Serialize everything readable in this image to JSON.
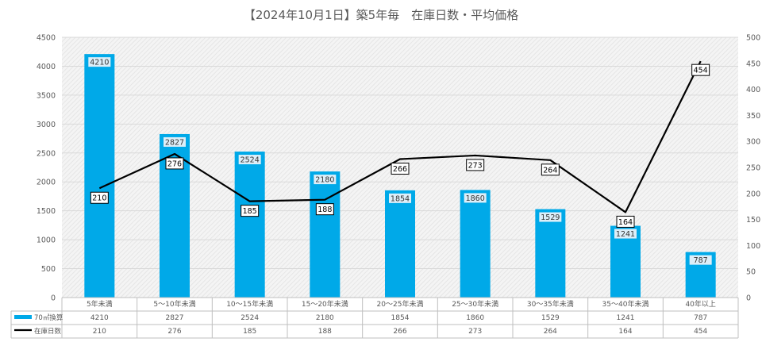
{
  "chart_data": {
    "type": "bar",
    "title": "【2024年10月1日】築5年毎　在庫日数・平均価格",
    "categories": [
      "5年未満",
      "5～10年未満",
      "10～15年未満",
      "15～20年未満",
      "20～25年未満",
      "25～30年未満",
      "30～35年未満",
      "35～40年未満",
      "40年以上"
    ],
    "series": [
      {
        "name": "70㎡換算",
        "type": "bar",
        "axis": "left",
        "color": "#00A9E8",
        "values": [
          4210,
          2827,
          2524,
          2180,
          1854,
          1860,
          1529,
          1241,
          787
        ]
      },
      {
        "name": "在庫日数",
        "type": "line",
        "axis": "right",
        "color": "#000000",
        "values": [
          210,
          276,
          185,
          188,
          266,
          273,
          264,
          164,
          454
        ]
      }
    ],
    "ylim": [
      0,
      4500
    ],
    "y2lim": [
      0,
      500
    ],
    "yticks": [
      0,
      500,
      1000,
      1500,
      2000,
      2500,
      3000,
      3500,
      4000,
      4500
    ],
    "y2ticks": [
      0,
      50,
      100,
      150,
      200,
      250,
      300,
      350,
      400,
      450,
      500
    ],
    "grid": true,
    "legend": "data-table"
  }
}
